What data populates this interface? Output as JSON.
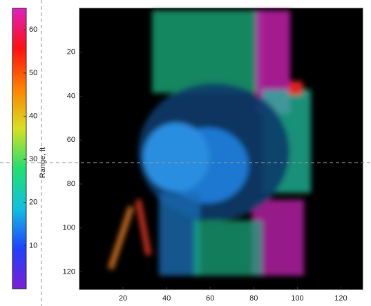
{
  "chart_data": {
    "type": "image",
    "colorbar_label": "Range, ft",
    "clim": [
      0,
      65
    ],
    "colorbar_ticks": [
      10,
      20,
      30,
      40,
      50,
      60
    ],
    "colormap": [
      "#7a1fd6",
      "#2040ff",
      "#10c0e0",
      "#20e070",
      "#d8e020",
      "#ff8000",
      "#ff1010",
      "#e020c0"
    ],
    "xlim": [
      0,
      130
    ],
    "xticks": [
      20,
      40,
      60,
      80,
      100,
      120
    ],
    "ylim": [
      0,
      128
    ],
    "yticks": [
      20,
      40,
      60,
      80,
      100,
      120
    ],
    "y_inverted": true
  }
}
